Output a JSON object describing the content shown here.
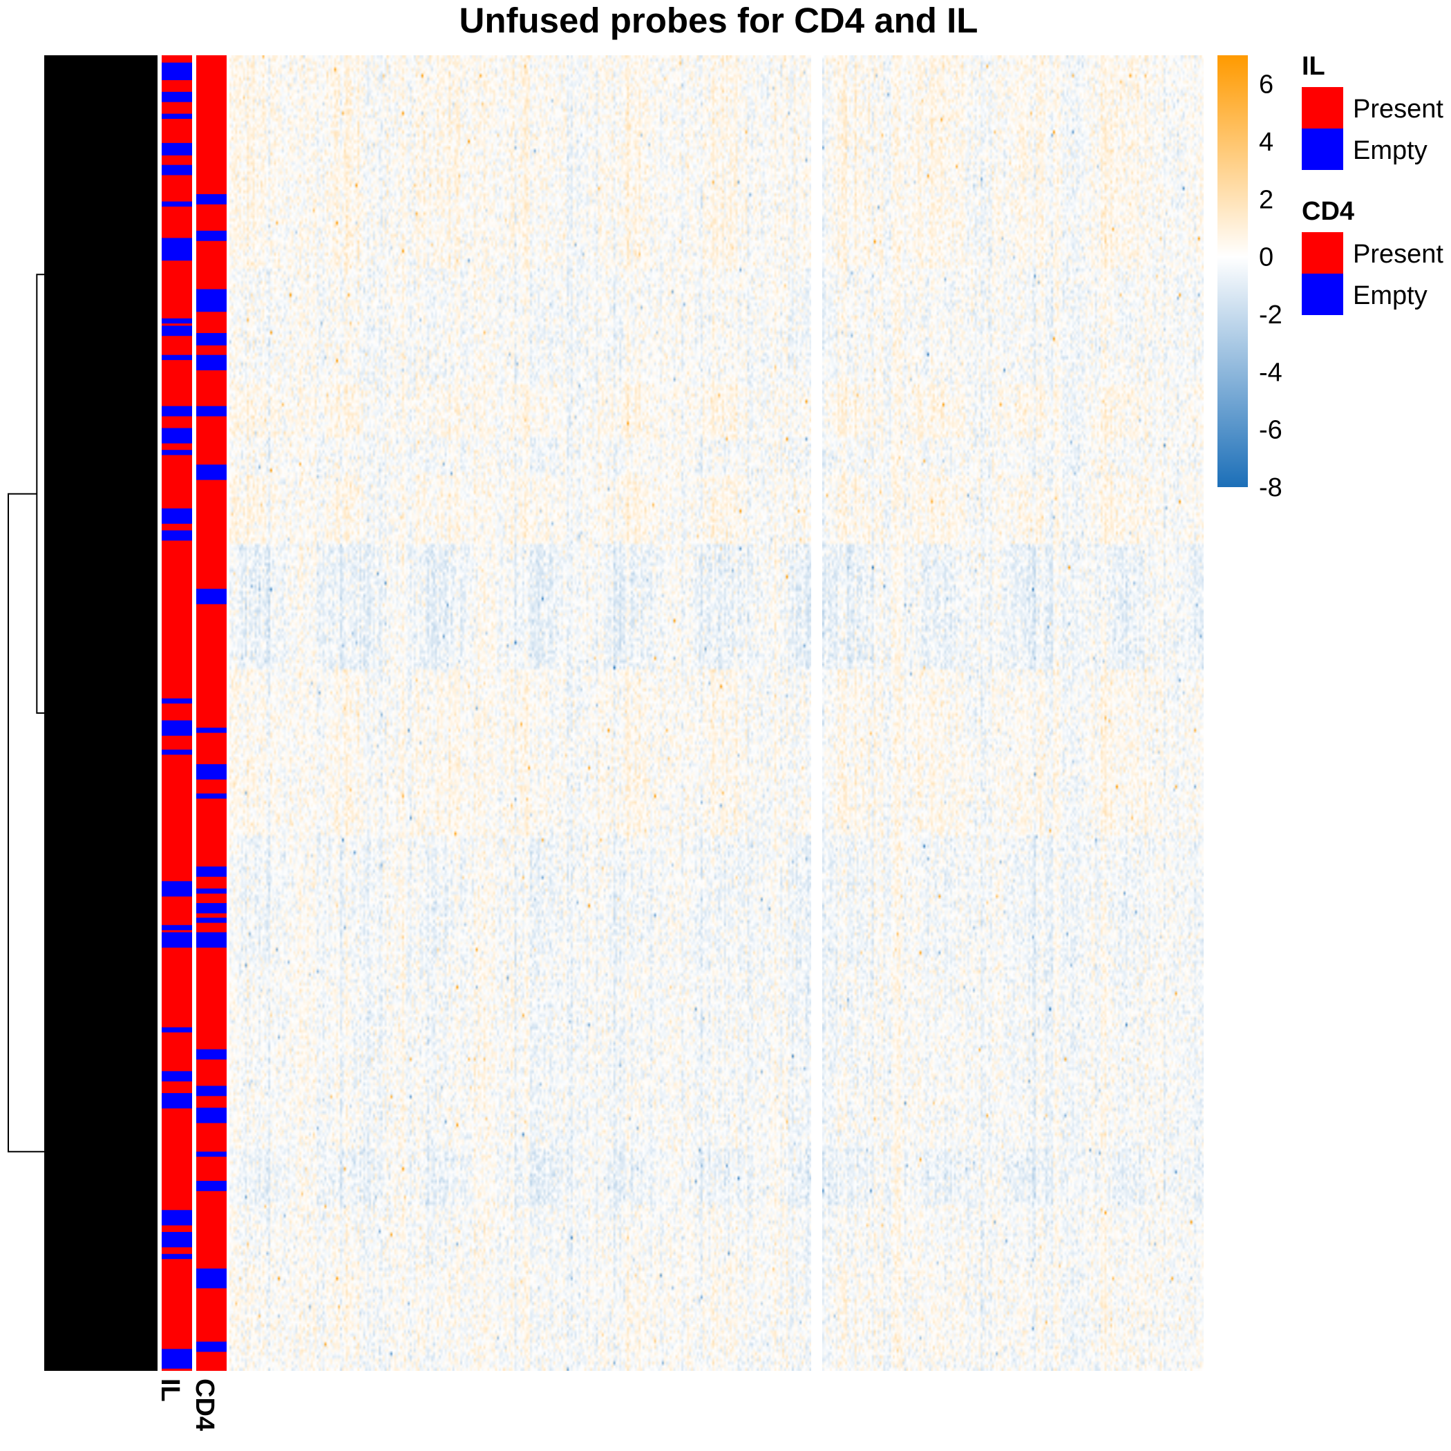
{
  "chart_data": {
    "type": "heatmap",
    "title": "Unfused probes for CD4 and IL",
    "colorbar": {
      "ticks": [
        6,
        4,
        2,
        0,
        -2,
        -4,
        -6,
        -8
      ],
      "range": [
        -8,
        7
      ],
      "low_color": "#1c6fb8",
      "mid_color": "#ffffff",
      "high_color": "#ff9a00"
    },
    "column_splits": 2,
    "row_dendrogram": true,
    "annotation_tracks": [
      {
        "name": "IL",
        "label": "IL",
        "blue_fraction": 0.12
      },
      {
        "name": "CD4",
        "label": "CD4",
        "blue_fraction": 0.16
      }
    ],
    "legends": [
      {
        "title": "IL",
        "items": [
          {
            "label": "Present",
            "color": "#ff0000"
          },
          {
            "label": "Empty",
            "color": "#0000ff"
          }
        ]
      },
      {
        "title": "CD4",
        "items": [
          {
            "label": "Present",
            "color": "#ff0000"
          },
          {
            "label": "Empty",
            "color": "#0000ff"
          }
        ]
      }
    ]
  }
}
